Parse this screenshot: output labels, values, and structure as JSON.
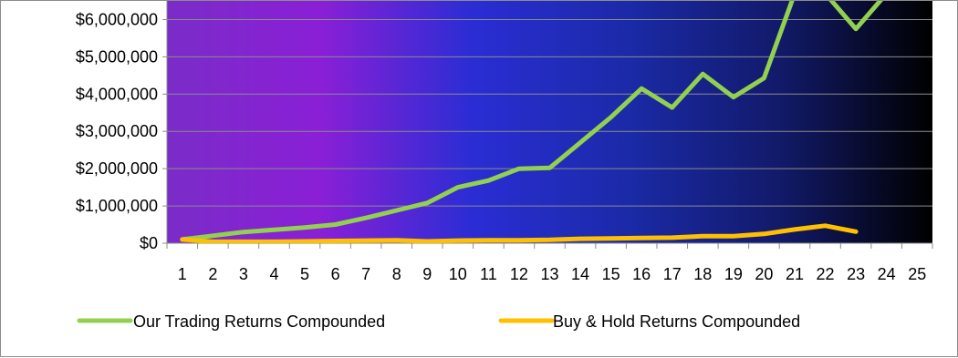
{
  "chart_data": {
    "type": "line",
    "categories": [
      "1",
      "2",
      "3",
      "4",
      "5",
      "6",
      "7",
      "8",
      "9",
      "10",
      "11",
      "12",
      "13",
      "14",
      "15",
      "16",
      "17",
      "18",
      "19",
      "20",
      "21",
      "22",
      "23",
      "24",
      "25"
    ],
    "series": [
      {
        "name": "Our Trading Returns Compounded",
        "color": "#92d050",
        "values": [
          100000,
          200000,
          300000,
          360000,
          420000,
          500000,
          680000,
          880000,
          1080000,
          1500000,
          1680000,
          2000000,
          2020000,
          2700000,
          3380000,
          4150000,
          3640000,
          4540000,
          3920000,
          4430000,
          6700000,
          6700000,
          5750000,
          6700000,
          null
        ]
      },
      {
        "name": "Buy & Hold Returns Compounded",
        "color": "#ffc000",
        "values": [
          100000,
          40000,
          40000,
          40000,
          50000,
          60000,
          70000,
          80000,
          50000,
          70000,
          80000,
          80000,
          90000,
          120000,
          130000,
          140000,
          150000,
          190000,
          190000,
          250000,
          370000,
          470000,
          310000,
          null,
          null
        ]
      }
    ],
    "y_ticks": [
      0,
      1000000,
      2000000,
      3000000,
      4000000,
      5000000,
      6000000
    ],
    "y_tick_labels": [
      "$0",
      "$1,000,000",
      "$2,000,000",
      "$3,000,000",
      "$4,000,000",
      "$5,000,000",
      "$6,000,000"
    ],
    "ylim": [
      0,
      6500000
    ],
    "grid": true,
    "legend_position": "bottom",
    "background_gradient": [
      "#7a2cc8",
      "#8a1fd6",
      "#2a2dd4",
      "#1b2aa8",
      "#121a6a",
      "#000000"
    ]
  }
}
